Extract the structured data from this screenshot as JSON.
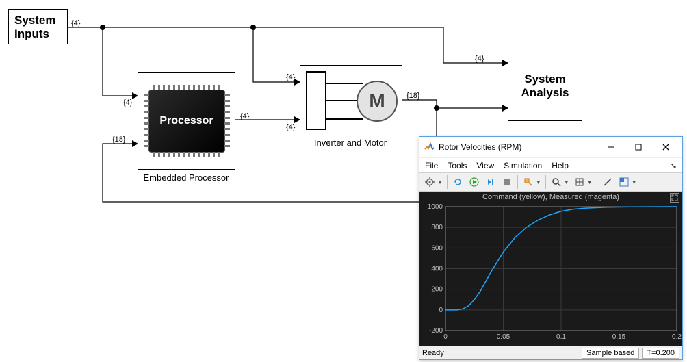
{
  "blocks": {
    "system_inputs": {
      "label": "System\nInputs"
    },
    "processor": {
      "label": "Processor",
      "caption": "Embedded Processor"
    },
    "inverter": {
      "caption": "Inverter and Motor",
      "motor_label": "M"
    },
    "analysis": {
      "label": "System\nAnalysis"
    }
  },
  "signals": {
    "s1": "{4}",
    "s2": "{4}",
    "s3": "{4}",
    "s4": "{4}",
    "s5": "{4}",
    "s6": "{18}",
    "s7": "{18}",
    "s8": "{4}"
  },
  "diagram_style": {
    "wire_color": "#000000",
    "bg": "#ffffff",
    "block_border": "#000000"
  },
  "scope": {
    "title": "Rotor Velocities (RPM)",
    "menu": [
      "File",
      "Tools",
      "View",
      "Simulation",
      "Help"
    ],
    "plot_title": "Command (yellow), Measured (magenta)",
    "status_ready": "Ready",
    "status_mode": "Sample based",
    "status_time": "T=0.200",
    "chart": {
      "type": "line",
      "background_color": "#1a1a1a",
      "grid_color": "#3a3a3a",
      "axis_color": "#888888",
      "text_color": "#c0c0c0",
      "line_color": "#1fa8ff",
      "line_width": 1.5,
      "xlim": [
        0,
        0.2
      ],
      "ylim": [
        -200,
        1000
      ],
      "xticks": [
        0,
        0.05,
        0.1,
        0.15,
        0.2
      ],
      "xtick_labels": [
        "0",
        "0.05",
        "0.1",
        "0.15",
        "0.2"
      ],
      "yticks": [
        -200,
        0,
        200,
        400,
        600,
        800,
        1000
      ],
      "ytick_labels": [
        "-200",
        "0",
        "200",
        "400",
        "600",
        "800",
        "1000"
      ],
      "series": [
        {
          "name": "measured",
          "color": "#1fa8ff",
          "x": [
            0,
            0.01,
            0.015,
            0.02,
            0.025,
            0.03,
            0.035,
            0.04,
            0.045,
            0.05,
            0.06,
            0.07,
            0.08,
            0.09,
            0.1,
            0.11,
            0.12,
            0.14,
            0.16,
            0.2
          ],
          "y": [
            0,
            0,
            10,
            40,
            100,
            180,
            280,
            380,
            470,
            560,
            700,
            800,
            870,
            920,
            955,
            975,
            985,
            995,
            998,
            1000
          ]
        }
      ]
    }
  }
}
